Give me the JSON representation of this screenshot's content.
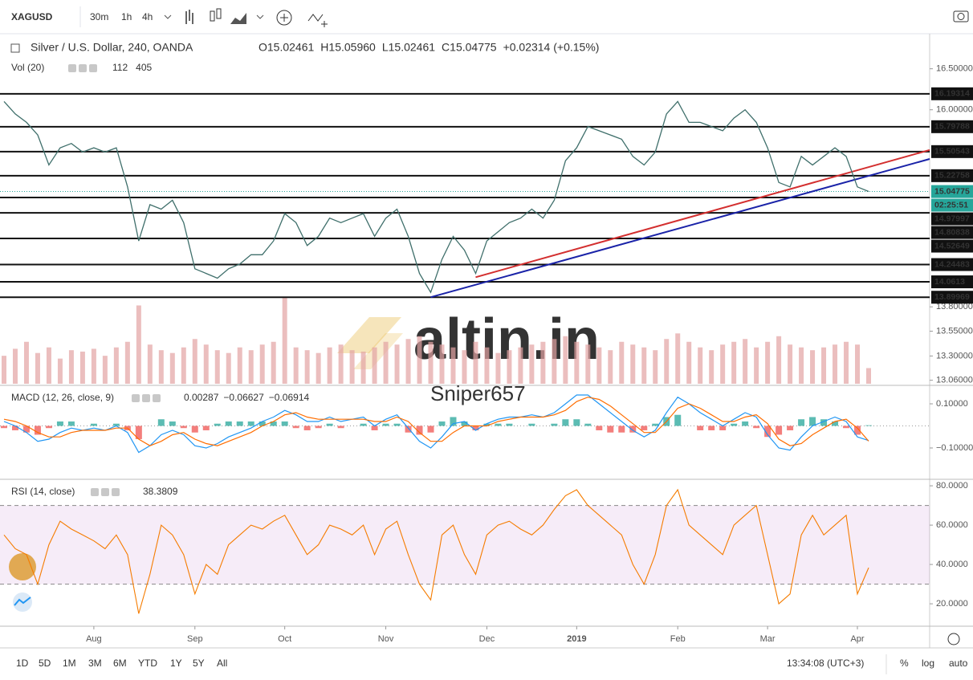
{
  "toolbar": {
    "symbol": "XAGUSD",
    "intervals": [
      "30m",
      "1h",
      "4h"
    ],
    "active_interval": 2
  },
  "chart_data": [
    {
      "type": "line",
      "title": "Silver / U.S. Dollar, 240, OANDA",
      "ohlc": [
        {
          "label": "O",
          "value": "15.02461"
        },
        {
          "label": "H",
          "value": "15.05960"
        },
        {
          "label": "L",
          "value": "15.02461"
        },
        {
          "label": "C",
          "value": "15.04775"
        }
      ],
      "change": "+0.02314 (+0.15%)",
      "categories": [
        null,
        null,
        null,
        null,
        null,
        null,
        null,
        null,
        "Aug",
        null,
        null,
        null,
        null,
        null,
        null,
        null,
        null,
        "Sep",
        null,
        null,
        null,
        null,
        null,
        null,
        null,
        "Oct",
        null,
        null,
        null,
        null,
        null,
        null,
        null,
        null,
        "Nov",
        null,
        null,
        null,
        null,
        null,
        null,
        null,
        null,
        "Dec",
        null,
        null,
        null,
        null,
        null,
        null,
        null,
        "2019",
        null,
        null,
        null,
        null,
        null,
        null,
        null,
        null,
        "Feb",
        null,
        null,
        null,
        null,
        null,
        null,
        null,
        "Mar",
        null,
        null,
        null,
        null,
        null,
        null,
        null,
        "Apr",
        null
      ],
      "values": [
        16.1,
        15.95,
        15.85,
        15.7,
        15.35,
        15.55,
        15.6,
        15.5,
        15.55,
        15.5,
        15.55,
        15.1,
        14.5,
        14.9,
        14.85,
        14.95,
        14.7,
        14.2,
        14.15,
        14.1,
        14.2,
        14.25,
        14.35,
        14.35,
        14.5,
        14.8,
        14.7,
        14.45,
        14.55,
        14.75,
        14.7,
        14.75,
        14.8,
        14.55,
        14.75,
        14.85,
        14.55,
        14.15,
        13.95,
        14.3,
        14.55,
        14.4,
        14.15,
        14.5,
        14.6,
        14.7,
        14.75,
        14.85,
        14.75,
        14.95,
        15.4,
        15.55,
        15.8,
        15.75,
        15.7,
        15.65,
        15.45,
        15.35,
        15.5,
        15.95,
        16.1,
        15.85,
        15.85,
        15.8,
        15.75,
        15.9,
        16.0,
        15.85,
        15.55,
        15.15,
        15.1,
        15.45,
        15.35,
        15.45,
        15.55,
        15.45,
        15.1,
        15.04775
      ],
      "color": "#3f6f6b",
      "log_scale": true,
      "ylim": [
        13.01,
        16.94
      ],
      "yticks": [
        {
          "value": 16.5,
          "label": "16.50000"
        },
        {
          "value": 16.0,
          "label": "16.00000"
        },
        {
          "value": 13.8,
          "label": "13.80000"
        },
        {
          "value": 13.55,
          "label": "13.55000"
        },
        {
          "value": 13.3,
          "label": "13.30000"
        },
        {
          "value": 13.06,
          "label": "13.06000"
        }
      ],
      "levels": [
        16.19314,
        15.79788,
        15.50543,
        15.22758,
        14.97997,
        14.80838,
        14.52649,
        14.24483,
        14.0613,
        13.89969
      ],
      "current_price": 15.04775,
      "current_color": "#26a69a",
      "countdown": "02:25:51",
      "trend_lines": [
        {
          "color": "#d32f2f",
          "points": [
            [
              42,
              14.11
            ],
            [
              76,
              15.29
            ]
          ]
        },
        {
          "color": "#1a23a8",
          "points": [
            [
              38,
              13.9
            ],
            [
              76,
              15.19
            ]
          ]
        }
      ],
      "volume": {
        "title": "Vol (20)",
        "legend": [
          "112",
          "405"
        ],
        "legend_colors": [
          "#26a69a",
          "#ff9800"
        ],
        "color": "#e3a3a3",
        "values": [
          200,
          250,
          300,
          220,
          260,
          180,
          240,
          230,
          250,
          200,
          260,
          300,
          560,
          280,
          240,
          220,
          260,
          320,
          280,
          240,
          220,
          260,
          240,
          280,
          300,
          620,
          260,
          240,
          220,
          260,
          280,
          240,
          230,
          260,
          300,
          280,
          320,
          340,
          300,
          280,
          260,
          240,
          300,
          260,
          220,
          240,
          260,
          280,
          300,
          320,
          340,
          300,
          280,
          260,
          240,
          300,
          280,
          260,
          240,
          320,
          360,
          300,
          260,
          240,
          280,
          300,
          320,
          260,
          300,
          340,
          280,
          260,
          240,
          260,
          280,
          300,
          280,
          112
        ]
      }
    },
    {
      "type": "macd",
      "title": "MACD (12, 26, close, 9)",
      "legend": [
        "0.00287",
        "−0.06627",
        "−0.06914"
      ],
      "legend_colors": [
        "#26a69a",
        "#2196f3",
        "#ff6d00"
      ],
      "series": [
        {
          "color": "#2196f3",
          "values": [
            0.02,
            0.0,
            -0.03,
            -0.07,
            -0.06,
            -0.03,
            -0.01,
            -0.02,
            -0.01,
            -0.02,
            0.0,
            -0.03,
            -0.12,
            -0.09,
            -0.04,
            -0.02,
            -0.04,
            -0.09,
            -0.1,
            -0.08,
            -0.05,
            -0.03,
            -0.01,
            0.02,
            0.04,
            0.07,
            0.05,
            0.02,
            0.02,
            0.04,
            0.02,
            0.03,
            0.04,
            0.0,
            0.03,
            0.05,
            -0.01,
            -0.07,
            -0.1,
            -0.05,
            0.01,
            0.02,
            -0.02,
            0.01,
            0.03,
            0.04,
            0.04,
            0.05,
            0.04,
            0.06,
            0.1,
            0.14,
            0.14,
            0.1,
            0.06,
            0.02,
            -0.02,
            -0.05,
            -0.02,
            0.06,
            0.13,
            0.1,
            0.06,
            0.03,
            0.0,
            0.03,
            0.06,
            0.04,
            -0.04,
            -0.1,
            -0.11,
            -0.05,
            0.0,
            0.02,
            0.04,
            0.02,
            -0.05,
            -0.06627
          ]
        },
        {
          "color": "#ff6d00",
          "values": [
            0.03,
            0.02,
            0.0,
            -0.03,
            -0.05,
            -0.05,
            -0.03,
            -0.02,
            -0.02,
            -0.02,
            -0.01,
            -0.01,
            -0.06,
            -0.09,
            -0.07,
            -0.04,
            -0.03,
            -0.06,
            -0.08,
            -0.09,
            -0.07,
            -0.05,
            -0.03,
            0.0,
            0.02,
            0.05,
            0.06,
            0.04,
            0.03,
            0.03,
            0.03,
            0.03,
            0.03,
            0.02,
            0.02,
            0.04,
            0.02,
            -0.03,
            -0.07,
            -0.07,
            -0.03,
            0.0,
            0.0,
            0.0,
            0.02,
            0.03,
            0.04,
            0.04,
            0.04,
            0.05,
            0.07,
            0.11,
            0.13,
            0.12,
            0.09,
            0.05,
            0.01,
            -0.03,
            -0.03,
            0.02,
            0.08,
            0.1,
            0.08,
            0.05,
            0.02,
            0.02,
            0.04,
            0.05,
            0.01,
            -0.06,
            -0.09,
            -0.08,
            -0.04,
            -0.01,
            0.02,
            0.03,
            -0.01,
            -0.06914
          ]
        }
      ],
      "histogram": {
        "up_color": "#26a69a",
        "down_color": "#ef5350",
        "values": [
          -0.01,
          -0.02,
          -0.03,
          -0.04,
          -0.01,
          0.02,
          0.02,
          0,
          0.01,
          0,
          0.01,
          -0.02,
          -0.06,
          0,
          0.03,
          0.02,
          -0.01,
          -0.03,
          -0.02,
          0.01,
          0.02,
          0.02,
          0.02,
          0.02,
          0.02,
          0.02,
          -0.01,
          -0.02,
          -0.01,
          0.01,
          -0.01,
          0,
          0.01,
          -0.02,
          0.01,
          0.01,
          -0.03,
          -0.04,
          -0.03,
          0.02,
          0.04,
          0.02,
          -0.02,
          0.01,
          0.01,
          0.01,
          0,
          0.01,
          0,
          0.01,
          0.03,
          0.03,
          0.01,
          -0.02,
          -0.03,
          -0.03,
          -0.03,
          -0.02,
          0.01,
          0.04,
          0.05,
          0,
          -0.02,
          -0.02,
          -0.02,
          0.01,
          0.02,
          -0.01,
          -0.05,
          -0.04,
          -0.02,
          0.03,
          0.04,
          0.03,
          0.02,
          -0.01,
          -0.04,
          0.00287
        ]
      },
      "ylim": [
        -0.242,
        0.18
      ],
      "yticks": [
        {
          "value": 0.1,
          "label": "0.10000"
        },
        {
          "value": -0.1,
          "label": "−0.10000"
        }
      ]
    },
    {
      "type": "rsi",
      "title": "RSI (14, close)",
      "legend": [
        "38.3809"
      ],
      "legend_colors": [
        "#f57c00"
      ],
      "color": "#f57c00",
      "values": [
        55,
        48,
        45,
        30,
        50,
        62,
        58,
        55,
        52,
        48,
        55,
        45,
        15,
        35,
        60,
        55,
        45,
        25,
        40,
        35,
        50,
        55,
        60,
        58,
        62,
        65,
        55,
        45,
        50,
        60,
        58,
        55,
        60,
        45,
        58,
        62,
        45,
        30,
        22,
        55,
        60,
        45,
        35,
        55,
        60,
        62,
        58,
        55,
        60,
        68,
        75,
        78,
        70,
        65,
        60,
        55,
        40,
        30,
        45,
        70,
        78,
        60,
        55,
        50,
        45,
        60,
        65,
        70,
        45,
        20,
        25,
        55,
        65,
        55,
        60,
        65,
        25,
        38.3809
      ],
      "bands": [
        30,
        70
      ],
      "band_color": "rgba(156,39,176,0.09)",
      "ylim": [
        8.6,
        82.9
      ],
      "yticks": [
        {
          "value": 80,
          "label": "80.0000"
        },
        {
          "value": 60,
          "label": "60.0000"
        },
        {
          "value": 40,
          "label": "40.0000"
        },
        {
          "value": 20,
          "label": "20.0000"
        }
      ]
    }
  ],
  "watermark": {
    "brand": "altin.in",
    "author": "Sniper657"
  },
  "footer": {
    "ranges": [
      "1D",
      "5D",
      "1M",
      "3M",
      "6M",
      "YTD",
      "1Y",
      "5Y",
      "All"
    ],
    "clock": "13:34:08 (UTC+3)",
    "options": [
      "%",
      "log",
      "auto"
    ],
    "active_option": 1
  }
}
